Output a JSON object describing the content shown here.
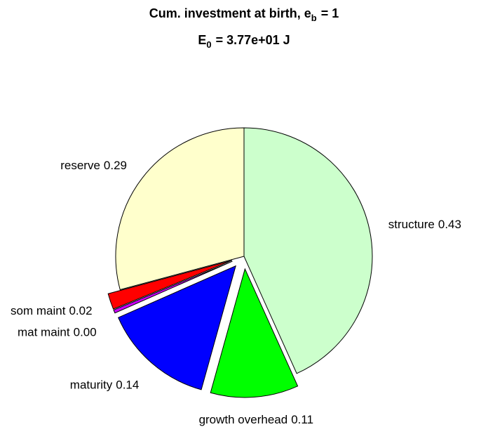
{
  "chart_data": {
    "type": "pie",
    "title": {
      "text": "Cum. investment at birth, e",
      "subscript": "b",
      "suffix": "= 1"
    },
    "subtitle": {
      "text": "E",
      "subscript": "0",
      "suffix": "= 3.77e+01 J"
    },
    "categories": [
      "structure",
      "growth overhead",
      "maturity",
      "mat maint",
      "som maint",
      "reserve"
    ],
    "values": [
      0.43,
      0.11,
      0.14,
      0.004,
      0.02,
      0.29
    ],
    "value_labels": [
      "0.43",
      "0.11",
      "0.14",
      "0.00",
      "0.02",
      "0.29"
    ],
    "colors": [
      "#ccffcc",
      "#00ff00",
      "#0000ff",
      "#cc00ff",
      "#ff0000",
      "#ffffcc"
    ],
    "explode": [
      false,
      true,
      true,
      true,
      true,
      false
    ]
  }
}
